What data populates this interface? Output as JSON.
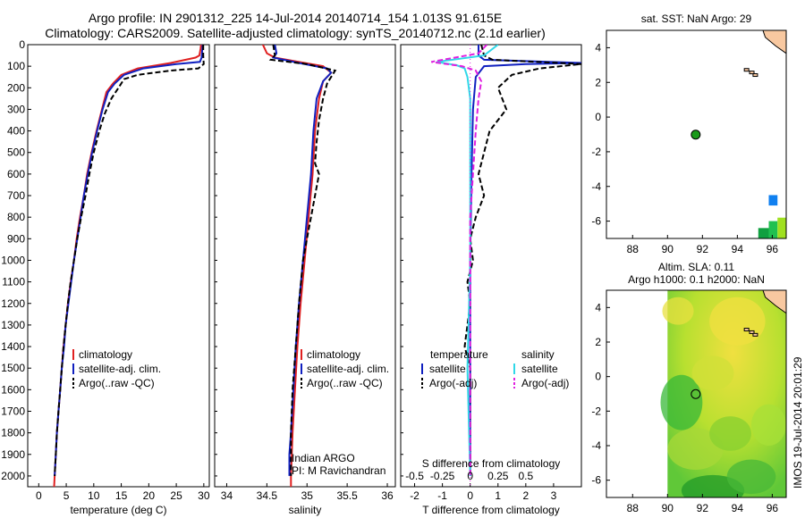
{
  "header": {
    "title_line1": "Argo profile: IN 2901312_225 14-Jul-2014 20140714_154 1.013S 91.615E",
    "title_line2": "Climatology: CARS2009. Satellite-adjusted climatology: synTS_20140712.nc (2.1d earlier)"
  },
  "colors": {
    "climatology": "#e02020",
    "satellite": "#1020c0",
    "argo": "#000000",
    "salinity_sat": "#30d8e8",
    "salinity_argo": "#e020e0",
    "land": "#f8c8a0"
  },
  "chart_data": [
    {
      "type": "line",
      "title": "",
      "xlabel": "temperature (deg C)",
      "ylabel": "",
      "xlim": [
        -2,
        31
      ],
      "ylim": [
        2050,
        0
      ],
      "x_ticks": [
        0,
        5,
        10,
        15,
        20,
        25,
        30
      ],
      "y_ticks": [
        0,
        100,
        200,
        300,
        400,
        500,
        600,
        700,
        800,
        900,
        1000,
        1100,
        1200,
        1300,
        1400,
        1500,
        1600,
        1700,
        1800,
        1900,
        2000
      ],
      "legend": [
        "climatology",
        "satellite-adj. clim.",
        "Argo(..raw -QC)"
      ],
      "series": [
        {
          "name": "climatology",
          "color": "#e02020",
          "dash": "",
          "points": [
            [
              29.5,
              0
            ],
            [
              29.4,
              20
            ],
            [
              29.2,
              50
            ],
            [
              28.5,
              60
            ],
            [
              24,
              85
            ],
            [
              18,
              110
            ],
            [
              15,
              140
            ],
            [
              13.5,
              180
            ],
            [
              12.3,
              220
            ],
            [
              11.5,
              300
            ],
            [
              10.5,
              400
            ],
            [
              9.6,
              500
            ],
            [
              8.8,
              600
            ],
            [
              8.2,
              700
            ],
            [
              7.5,
              800
            ],
            [
              6.9,
              900
            ],
            [
              6.4,
              1000
            ],
            [
              5.8,
              1100
            ],
            [
              5.3,
              1200
            ],
            [
              4.9,
              1300
            ],
            [
              4.5,
              1400
            ],
            [
              4.2,
              1500
            ],
            [
              3.9,
              1600
            ],
            [
              3.6,
              1700
            ],
            [
              3.3,
              1800
            ],
            [
              3.1,
              1900
            ],
            [
              2.9,
              2000
            ],
            [
              2.8,
              2050
            ]
          ]
        },
        {
          "name": "satellite-adj. clim.",
          "color": "#1020c0",
          "dash": "",
          "points": [
            [
              29.8,
              0
            ],
            [
              29.7,
              30
            ],
            [
              29.6,
              60
            ],
            [
              29.3,
              80
            ],
            [
              25,
              90
            ],
            [
              19,
              110
            ],
            [
              15.5,
              140
            ],
            [
              13.8,
              180
            ],
            [
              12.6,
              220
            ],
            [
              11.6,
              300
            ],
            [
              10.6,
              400
            ],
            [
              9.7,
              500
            ],
            [
              8.9,
              600
            ],
            [
              8.2,
              700
            ],
            [
              7.6,
              800
            ],
            [
              7,
              900
            ],
            [
              6.4,
              1000
            ],
            [
              5.9,
              1100
            ],
            [
              5.4,
              1200
            ],
            [
              4.9,
              1300
            ],
            [
              4.6,
              1400
            ],
            [
              4.2,
              1500
            ],
            [
              3.9,
              1600
            ],
            [
              3.6,
              1700
            ],
            [
              3.3,
              1800
            ],
            [
              3.1,
              1900
            ],
            [
              2.9,
              2000
            ]
          ]
        },
        {
          "name": "Argo(..raw -QC)",
          "color": "#000000",
          "dash": "6,3",
          "points": [
            [
              29.9,
              0
            ],
            [
              29.9,
              50
            ],
            [
              30,
              90
            ],
            [
              29,
              110
            ],
            [
              24,
              120
            ],
            [
              18,
              140
            ],
            [
              15.5,
              160
            ],
            [
              14.5,
              200
            ],
            [
              13.2,
              250
            ],
            [
              12,
              320
            ],
            [
              11,
              400
            ],
            [
              10,
              500
            ],
            [
              9.2,
              600
            ],
            [
              8.5,
              700
            ],
            [
              7.7,
              800
            ],
            [
              7,
              900
            ],
            [
              6.4,
              1000
            ],
            [
              5.8,
              1100
            ],
            [
              5.3,
              1200
            ],
            [
              4.9,
              1300
            ],
            [
              4.5,
              1400
            ],
            [
              4.2,
              1500
            ],
            [
              3.9,
              1600
            ],
            [
              3.6,
              1700
            ],
            [
              3.3,
              1800
            ],
            [
              3.1,
              1900
            ],
            [
              2.9,
              2000
            ]
          ]
        }
      ]
    },
    {
      "type": "line",
      "title": "",
      "xlabel": "salinity",
      "ylabel": "",
      "xlim": [
        33.85,
        36.1
      ],
      "ylim": [
        2050,
        0
      ],
      "x_ticks": [
        34,
        34.5,
        35,
        35.5,
        36
      ],
      "legend": [
        "climatology",
        "satellite-adj. clim.",
        "Argo(..raw -QC)"
      ],
      "annotations": [
        "Indian ARGO",
        "PI: M Ravichandran"
      ],
      "series": [
        {
          "name": "climatology",
          "color": "#e02020",
          "dash": "",
          "points": [
            [
              34.45,
              0
            ],
            [
              34.5,
              40
            ],
            [
              34.6,
              60
            ],
            [
              34.9,
              80
            ],
            [
              35.2,
              100
            ],
            [
              35.3,
              130
            ],
            [
              35.2,
              170
            ],
            [
              35.15,
              250
            ],
            [
              35.1,
              400
            ],
            [
              35.07,
              600
            ],
            [
              35.02,
              800
            ],
            [
              34.97,
              1000
            ],
            [
              34.92,
              1200
            ],
            [
              34.88,
              1400
            ],
            [
              34.85,
              1600
            ],
            [
              34.82,
              1800
            ],
            [
              34.8,
              2000
            ],
            [
              34.8,
              2050
            ]
          ]
        },
        {
          "name": "satellite-adj. clim.",
          "color": "#1020c0",
          "dash": "",
          "points": [
            [
              34.6,
              0
            ],
            [
              34.62,
              40
            ],
            [
              34.58,
              60
            ],
            [
              34.9,
              85
            ],
            [
              35.25,
              110
            ],
            [
              35.3,
              130
            ],
            [
              35.2,
              170
            ],
            [
              35.12,
              250
            ],
            [
              35.08,
              400
            ],
            [
              35.05,
              600
            ],
            [
              35.0,
              800
            ],
            [
              34.95,
              1000
            ],
            [
              34.9,
              1200
            ],
            [
              34.86,
              1400
            ],
            [
              34.83,
              1600
            ],
            [
              34.8,
              1800
            ],
            [
              34.78,
              1900
            ],
            [
              34.78,
              2000
            ]
          ]
        },
        {
          "name": "Argo(..raw -QC)",
          "color": "#000000",
          "dash": "6,3",
          "points": [
            [
              34.58,
              0
            ],
            [
              34.6,
              50
            ],
            [
              34.55,
              70
            ],
            [
              35.0,
              90
            ],
            [
              35.35,
              120
            ],
            [
              35.3,
              150
            ],
            [
              35.25,
              180
            ],
            [
              35.2,
              250
            ],
            [
              35.15,
              350
            ],
            [
              35.12,
              450
            ],
            [
              35.1,
              550
            ],
            [
              35.15,
              600
            ],
            [
              35.1,
              700
            ],
            [
              35.05,
              800
            ],
            [
              35.0,
              900
            ],
            [
              34.95,
              1000
            ],
            [
              34.9,
              1200
            ],
            [
              34.86,
              1400
            ],
            [
              34.82,
              1600
            ],
            [
              34.8,
              1800
            ],
            [
              34.8,
              2000
            ]
          ]
        }
      ]
    },
    {
      "type": "line",
      "title": "",
      "xlabel": "T difference from climatology",
      "x2label": "S difference from climatology",
      "ylabel": "",
      "xlim": [
        -2.5,
        4
      ],
      "ylim": [
        2050,
        0
      ],
      "x_ticks": [
        -2,
        -1,
        0,
        1,
        2,
        3
      ],
      "x2_ticks": [
        "-0.5",
        "-0.25",
        "0",
        "0.25",
        "0.5"
      ],
      "x2_tick_values": [
        -2,
        -1,
        0,
        1,
        2
      ],
      "legend_left_title": "temperature",
      "legend_right_title": "salinity",
      "legend_left": [
        "satellite",
        "Argo(-adj)"
      ],
      "legend_right": [
        "satellite",
        "Argo(-adj)"
      ],
      "series": [
        {
          "name": "T satellite",
          "color": "#1020c0",
          "dash": "",
          "points": [
            [
              0.3,
              0
            ],
            [
              0.3,
              50
            ],
            [
              0.5,
              70
            ],
            [
              4,
              85
            ],
            [
              2,
              90
            ],
            [
              0.5,
              100
            ],
            [
              0.2,
              150
            ],
            [
              0.1,
              300
            ],
            [
              0.05,
              600
            ],
            [
              0,
              1000
            ],
            [
              0,
              1500
            ],
            [
              0,
              2000
            ]
          ]
        },
        {
          "name": "T Argo(-adj)",
          "color": "#000000",
          "dash": "6,3",
          "points": [
            [
              0.4,
              0
            ],
            [
              0.5,
              50
            ],
            [
              0.8,
              70
            ],
            [
              4,
              90
            ],
            [
              2.5,
              110
            ],
            [
              1.5,
              140
            ],
            [
              1.0,
              200
            ],
            [
              1.3,
              300
            ],
            [
              0.7,
              400
            ],
            [
              0.5,
              500
            ],
            [
              0.3,
              600
            ],
            [
              0.5,
              700
            ],
            [
              0.2,
              800
            ],
            [
              0,
              900
            ],
            [
              0.1,
              1000
            ],
            [
              -0.1,
              1100
            ],
            [
              0,
              1200
            ],
            [
              -0.2,
              1400
            ],
            [
              0,
              1500
            ],
            [
              0,
              1600
            ],
            [
              0,
              2000
            ]
          ]
        },
        {
          "name": "S satellite",
          "color": "#30d8e8",
          "dash": "",
          "points": [
            [
              1,
              0
            ],
            [
              0.5,
              50
            ],
            [
              -1.2,
              80
            ],
            [
              -0.5,
              95
            ],
            [
              -0.2,
              110
            ],
            [
              -0.1,
              150
            ],
            [
              0,
              250
            ],
            [
              0,
              500
            ],
            [
              0,
              1000
            ],
            [
              -0.1,
              1500
            ],
            [
              0,
              2000
            ]
          ]
        },
        {
          "name": "S Argo(-adj)",
          "color": "#e020e0",
          "dash": "6,3",
          "points": [
            [
              0.6,
              0
            ],
            [
              0.3,
              40
            ],
            [
              -1.4,
              80
            ],
            [
              -0.3,
              100
            ],
            [
              0.2,
              120
            ],
            [
              0.4,
              170
            ],
            [
              0.3,
              250
            ],
            [
              0.2,
              400
            ],
            [
              0.1,
              600
            ],
            [
              0,
              800
            ],
            [
              0,
              1200
            ],
            [
              0,
              2000
            ]
          ]
        }
      ]
    },
    {
      "type": "scatter",
      "title": "sat. SST: NaN Argo: 29",
      "xlim": [
        86.5,
        96.8
      ],
      "ylim": [
        -7,
        5
      ],
      "x_ticks": [
        88,
        90,
        92,
        94,
        96
      ],
      "y_ticks": [
        -6,
        -4,
        -2,
        0,
        2,
        4
      ],
      "points": [
        {
          "x": 91.615,
          "y": -1.013,
          "label": "Argo float",
          "color": "#1a9a1a"
        }
      ],
      "patches": [
        {
          "x0": 95.8,
          "x1": 96.3,
          "y0": -5.1,
          "y1": -4.5,
          "color": "#1080f0"
        },
        {
          "x0": 95.2,
          "x1": 95.8,
          "y0": -7.0,
          "y1": -6.4,
          "color": "#10a040"
        },
        {
          "x0": 95.8,
          "x1": 96.3,
          "y0": -7.0,
          "y1": -6.0,
          "color": "#20c050"
        },
        {
          "x0": 96.3,
          "x1": 96.8,
          "y0": -7.0,
          "y1": -5.8,
          "color": "#a0e020"
        }
      ]
    },
    {
      "type": "heatmap",
      "title": "Altim. SLA: 0.11",
      "subtitle": "Argo h1000: 0.1 h2000: NaN",
      "xlim": [
        86.5,
        96.8
      ],
      "ylim": [
        -7,
        5
      ],
      "x_ticks": [
        88,
        90,
        92,
        94,
        96
      ],
      "y_ticks": [
        -6,
        -4,
        -2,
        0,
        2,
        4
      ],
      "data_start_lon": 90,
      "points": [
        {
          "x": 91.615,
          "y": -1.013,
          "label": "Argo float"
        }
      ]
    }
  ],
  "footer": {
    "side_text": "IMOS 19-Jul-2014 20:01:29"
  }
}
